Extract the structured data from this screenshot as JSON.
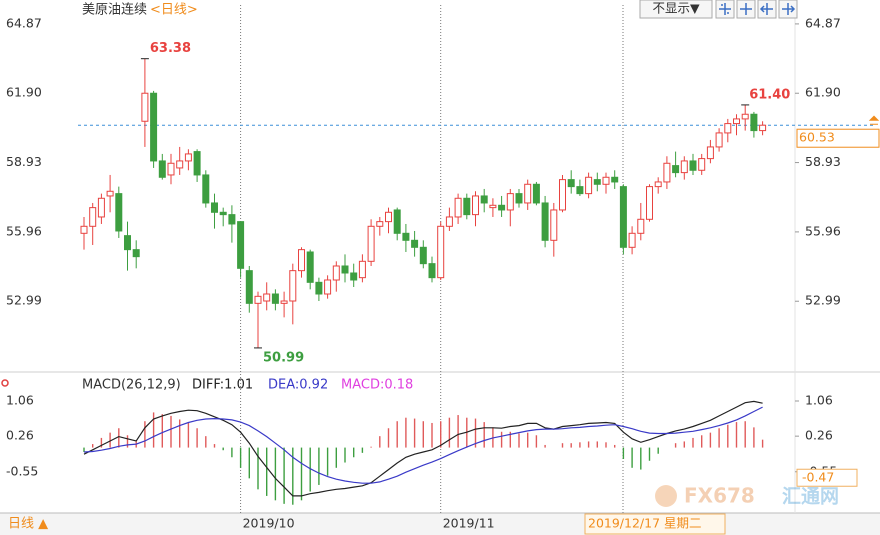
{
  "ui": {
    "period_button": "不显示▼",
    "bottom_period": "日线 ▲",
    "cursor_date": "2019/12/17 星期二",
    "watermark": "FX678",
    "watermark_cn": "汇通网"
  },
  "chart_data": [
    {
      "type": "candlestick",
      "title": "美原油连续",
      "subtitle": "<日线>",
      "categories": [
        null,
        null,
        null,
        null,
        null,
        null,
        null,
        null,
        null,
        null,
        null,
        null,
        null,
        null,
        null,
        null,
        null,
        null,
        "2019/10",
        null,
        null,
        null,
        null,
        null,
        null,
        null,
        null,
        null,
        null,
        null,
        null,
        null,
        null,
        null,
        null,
        null,
        null,
        null,
        null,
        null,
        null,
        "2019/11",
        null,
        null,
        null,
        null,
        null,
        null,
        null,
        null,
        null,
        null,
        null,
        null,
        null,
        null,
        null,
        null,
        null,
        null,
        null,
        null,
        null,
        null,
        null,
        null,
        null,
        null,
        null,
        null,
        null,
        null,
        null,
        null,
        null,
        null,
        null,
        null,
        null
      ],
      "open": [
        55.9,
        56.2,
        56.6,
        57.5,
        57.6,
        55.8,
        55.2,
        60.7,
        61.9,
        59.0,
        58.4,
        58.7,
        59.0,
        59.4,
        58.4,
        57.2,
        56.8,
        56.7,
        56.4,
        54.3,
        52.9,
        53.0,
        53.3,
        52.9,
        53.0,
        54.3,
        55.1,
        53.8,
        53.3,
        53.9,
        54.5,
        54.2,
        54.0,
        54.7,
        56.2,
        56.4,
        56.9,
        55.9,
        55.6,
        55.3,
        54.6,
        54.0,
        56.2,
        56.6,
        57.4,
        56.7,
        57.5,
        57.0,
        57.1,
        56.9,
        57.6,
        57.2,
        58.0,
        57.2,
        55.6,
        56.9,
        58.2,
        57.9,
        57.6,
        58.2,
        58.0,
        58.3,
        57.9,
        55.3,
        55.9,
        56.5,
        57.9,
        58.1,
        58.8,
        58.5,
        59.0,
        58.6,
        59.1,
        59.6,
        60.2,
        60.6,
        60.8,
        61.0,
        60.3
      ],
      "high": [
        56.6,
        57.2,
        57.6,
        58.4,
        57.9,
        56.4,
        55.6,
        63.38,
        62.0,
        59.3,
        59.3,
        59.6,
        59.5,
        59.5,
        58.6,
        57.6,
        57.0,
        57.1,
        56.4,
        54.5,
        53.4,
        53.8,
        53.5,
        53.4,
        54.6,
        55.3,
        55.2,
        54.0,
        54.1,
        54.7,
        55.0,
        54.6,
        55.0,
        56.5,
        56.6,
        57.0,
        57.0,
        56.3,
        56.0,
        55.6,
        54.9,
        56.4,
        57.0,
        57.6,
        57.6,
        57.7,
        57.8,
        57.4,
        57.5,
        57.8,
        57.8,
        58.2,
        58.1,
        57.5,
        57.2,
        58.4,
        58.6,
        58.2,
        58.5,
        58.5,
        58.5,
        58.6,
        58.0,
        56.2,
        57.2,
        58.0,
        58.3,
        59.2,
        59.4,
        59.2,
        59.3,
        59.3,
        59.9,
        60.4,
        60.8,
        61.0,
        61.4,
        61.1,
        60.7
      ],
      "low": [
        55.2,
        55.4,
        56.3,
        56.8,
        55.7,
        54.3,
        54.4,
        59.6,
        58.7,
        58.2,
        58.0,
        58.4,
        58.6,
        58.1,
        57.0,
        56.1,
        56.2,
        55.5,
        54.0,
        52.5,
        50.99,
        52.6,
        52.6,
        52.3,
        52.0,
        54.0,
        53.5,
        53.0,
        53.1,
        53.4,
        53.8,
        53.6,
        53.8,
        54.5,
        55.8,
        55.9,
        55.6,
        55.1,
        54.9,
        54.4,
        53.8,
        53.9,
        56.0,
        56.3,
        56.5,
        56.2,
        56.8,
        56.6,
        56.6,
        56.2,
        57.0,
        56.9,
        57.1,
        55.3,
        54.9,
        56.8,
        57.6,
        57.5,
        57.4,
        57.7,
        57.6,
        57.8,
        55.0,
        55.0,
        55.6,
        56.4,
        57.6,
        57.8,
        58.3,
        58.2,
        58.4,
        58.4,
        58.9,
        59.4,
        59.8,
        60.1,
        60.3,
        60.0,
        60.1
      ],
      "close": [
        56.2,
        57.0,
        57.4,
        57.7,
        56.0,
        55.2,
        54.9,
        61.9,
        59.0,
        58.3,
        58.9,
        59.0,
        59.3,
        58.4,
        57.2,
        56.8,
        56.7,
        56.3,
        54.4,
        52.9,
        53.2,
        53.3,
        52.9,
        53.0,
        54.3,
        55.2,
        53.8,
        53.3,
        53.9,
        54.5,
        54.2,
        53.9,
        54.7,
        56.2,
        56.4,
        56.8,
        55.9,
        55.6,
        55.3,
        54.6,
        54.0,
        56.2,
        56.6,
        57.4,
        56.7,
        57.5,
        57.2,
        57.1,
        56.9,
        57.6,
        57.2,
        58.0,
        57.2,
        55.6,
        56.9,
        58.2,
        57.9,
        57.6,
        58.3,
        58.0,
        58.3,
        58.1,
        55.3,
        55.9,
        56.5,
        57.9,
        58.1,
        58.9,
        58.5,
        59.0,
        58.6,
        59.1,
        59.6,
        60.2,
        60.6,
        60.8,
        61.0,
        60.3,
        60.53
      ],
      "max_label": "63.38",
      "min_label": "50.99",
      "recent_max_label": "61.40",
      "up_color": "#e8423f",
      "down_color": "#3d9e40",
      "last_price_color": "#f08c1c",
      "ylim": [
        50.13,
        65.68
      ],
      "yticks": [
        64.87,
        {
          "value": 61.9,
          "label": "61.90"
        },
        58.93,
        55.96,
        52.99
      ]
    },
    {
      "type": "macd",
      "title": "MACD(26,12,9)",
      "series": [
        {
          "name": "DIFF:1.01",
          "color": "#222222",
          "values": [
            -0.15,
            -0.05,
            0.05,
            0.15,
            0.25,
            0.2,
            0.15,
            0.45,
            0.65,
            0.72,
            0.78,
            0.82,
            0.85,
            0.84,
            0.78,
            0.7,
            0.62,
            0.52,
            0.35,
            0.1,
            -0.2,
            -0.45,
            -0.7,
            -0.9,
            -1.1,
            -1.1,
            -1.05,
            -1.02,
            -0.98,
            -0.95,
            -0.93,
            -0.9,
            -0.87,
            -0.8,
            -0.65,
            -0.5,
            -0.35,
            -0.22,
            -0.15,
            -0.1,
            -0.05,
            0.05,
            0.18,
            0.3,
            0.35,
            0.42,
            0.45,
            0.45,
            0.44,
            0.48,
            0.5,
            0.55,
            0.55,
            0.45,
            0.42,
            0.48,
            0.5,
            0.52,
            0.55,
            0.56,
            0.57,
            0.55,
            0.35,
            0.2,
            0.12,
            0.18,
            0.25,
            0.32,
            0.38,
            0.42,
            0.48,
            0.55,
            0.62,
            0.72,
            0.82,
            0.92,
            1.02,
            1.05,
            1.01
          ]
        },
        {
          "name": "DEA:0.92",
          "color": "#3a3ac8",
          "values": [
            -0.1,
            -0.09,
            -0.06,
            -0.02,
            0.03,
            0.06,
            0.08,
            0.15,
            0.25,
            0.34,
            0.42,
            0.5,
            0.57,
            0.62,
            0.65,
            0.66,
            0.65,
            0.63,
            0.58,
            0.5,
            0.38,
            0.25,
            0.1,
            -0.05,
            -0.22,
            -0.36,
            -0.48,
            -0.58,
            -0.66,
            -0.72,
            -0.76,
            -0.79,
            -0.81,
            -0.81,
            -0.78,
            -0.72,
            -0.65,
            -0.56,
            -0.48,
            -0.4,
            -0.33,
            -0.25,
            -0.16,
            -0.07,
            0.01,
            0.09,
            0.16,
            0.22,
            0.26,
            0.3,
            0.34,
            0.38,
            0.41,
            0.42,
            0.42,
            0.43,
            0.45,
            0.46,
            0.48,
            0.49,
            0.51,
            0.52,
            0.48,
            0.43,
            0.37,
            0.33,
            0.32,
            0.32,
            0.33,
            0.35,
            0.37,
            0.41,
            0.45,
            0.5,
            0.56,
            0.63,
            0.72,
            0.82,
            0.92
          ]
        },
        {
          "name": "MACD:0.18",
          "color": "#e040e0",
          "values": [
            -0.1,
            0.08,
            0.22,
            0.34,
            0.44,
            0.28,
            0.14,
            0.6,
            0.8,
            0.76,
            0.72,
            0.64,
            0.56,
            0.44,
            0.26,
            0.08,
            -0.06,
            -0.22,
            -0.46,
            -0.7,
            -0.95,
            -1.1,
            -1.2,
            -1.28,
            -1.3,
            -1.2,
            -1.0,
            -0.85,
            -0.64,
            -0.46,
            -0.34,
            -0.22,
            -0.12,
            0.02,
            0.26,
            0.44,
            0.6,
            0.68,
            0.66,
            0.6,
            0.56,
            0.6,
            0.68,
            0.74,
            0.68,
            0.66,
            0.58,
            0.46,
            0.36,
            0.36,
            0.32,
            0.34,
            0.28,
            0.06,
            0,
            0.1,
            0.1,
            0.12,
            0.14,
            0.14,
            0.12,
            0.06,
            -0.26,
            -0.46,
            -0.5,
            -0.3,
            -0.14,
            0,
            0.1,
            0.14,
            0.22,
            0.28,
            0.34,
            0.44,
            0.52,
            0.58,
            0.6,
            0.46,
            0.18
          ]
        }
      ],
      "up_color": "#e05a5a",
      "down_color": "#3d9e40",
      "cursor_value": -0.47,
      "ylim": [
        -1.42,
        1.31
      ],
      "yticks": [
        1.06,
        0.26,
        -0.55
      ]
    }
  ]
}
